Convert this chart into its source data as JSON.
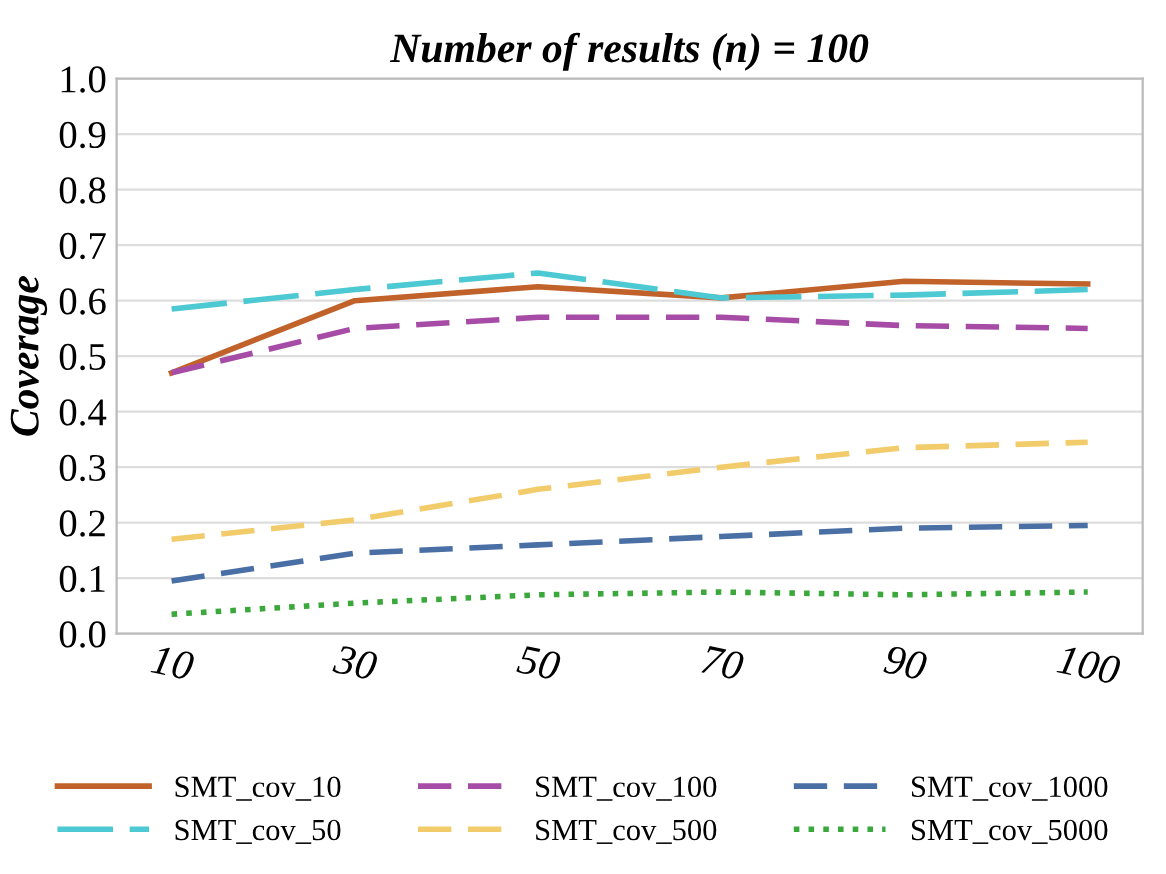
{
  "chart_data": {
    "type": "line",
    "title": "Number of results (n) = 100",
    "ylabel": "Coverage",
    "categories": [
      "10",
      "30",
      "50",
      "70",
      "90",
      "100"
    ],
    "ylim": [
      0,
      1
    ],
    "yticks": [
      {
        "value": 0,
        "label": "0.0"
      },
      0.1,
      0.2,
      0.3,
      0.4,
      0.5,
      0.6,
      0.7,
      0.8,
      0.9,
      {
        "value": 1,
        "label": "1.0"
      }
    ],
    "grid": "y",
    "legend": "bottom",
    "marker": "none",
    "series": [
      {
        "name": "SMT_cov_10",
        "color": "#c0622a",
        "line_style": "solid",
        "values": [
          0.47,
          0.6,
          0.625,
          0.605,
          0.635,
          0.63
        ]
      },
      {
        "name": "SMT_cov_50",
        "color": "#4cc9d2",
        "line_style": "dashed",
        "values": [
          0.585,
          0.62,
          0.65,
          0.605,
          0.61,
          0.62
        ]
      },
      {
        "name": "SMT_cov_100",
        "color": "#a64ca6",
        "line_style": "dashed",
        "values": [
          0.47,
          0.55,
          0.57,
          0.57,
          0.555,
          0.55
        ]
      },
      {
        "name": "SMT_cov_500",
        "color": "#f2cc6b",
        "line_style": "dashed",
        "values": [
          0.17,
          0.205,
          0.26,
          0.3,
          0.335,
          0.345
        ]
      },
      {
        "name": "SMT_cov_1000",
        "color": "#4a6fa5",
        "line_style": "dashed",
        "values": [
          0.095,
          0.145,
          0.16,
          0.175,
          0.19,
          0.195
        ]
      },
      {
        "name": "SMT_cov_5000",
        "color": "#3aa83a",
        "line_style": "dotted",
        "values": [
          0.035,
          0.055,
          0.07,
          0.075,
          0.07,
          0.075
        ]
      }
    ]
  }
}
